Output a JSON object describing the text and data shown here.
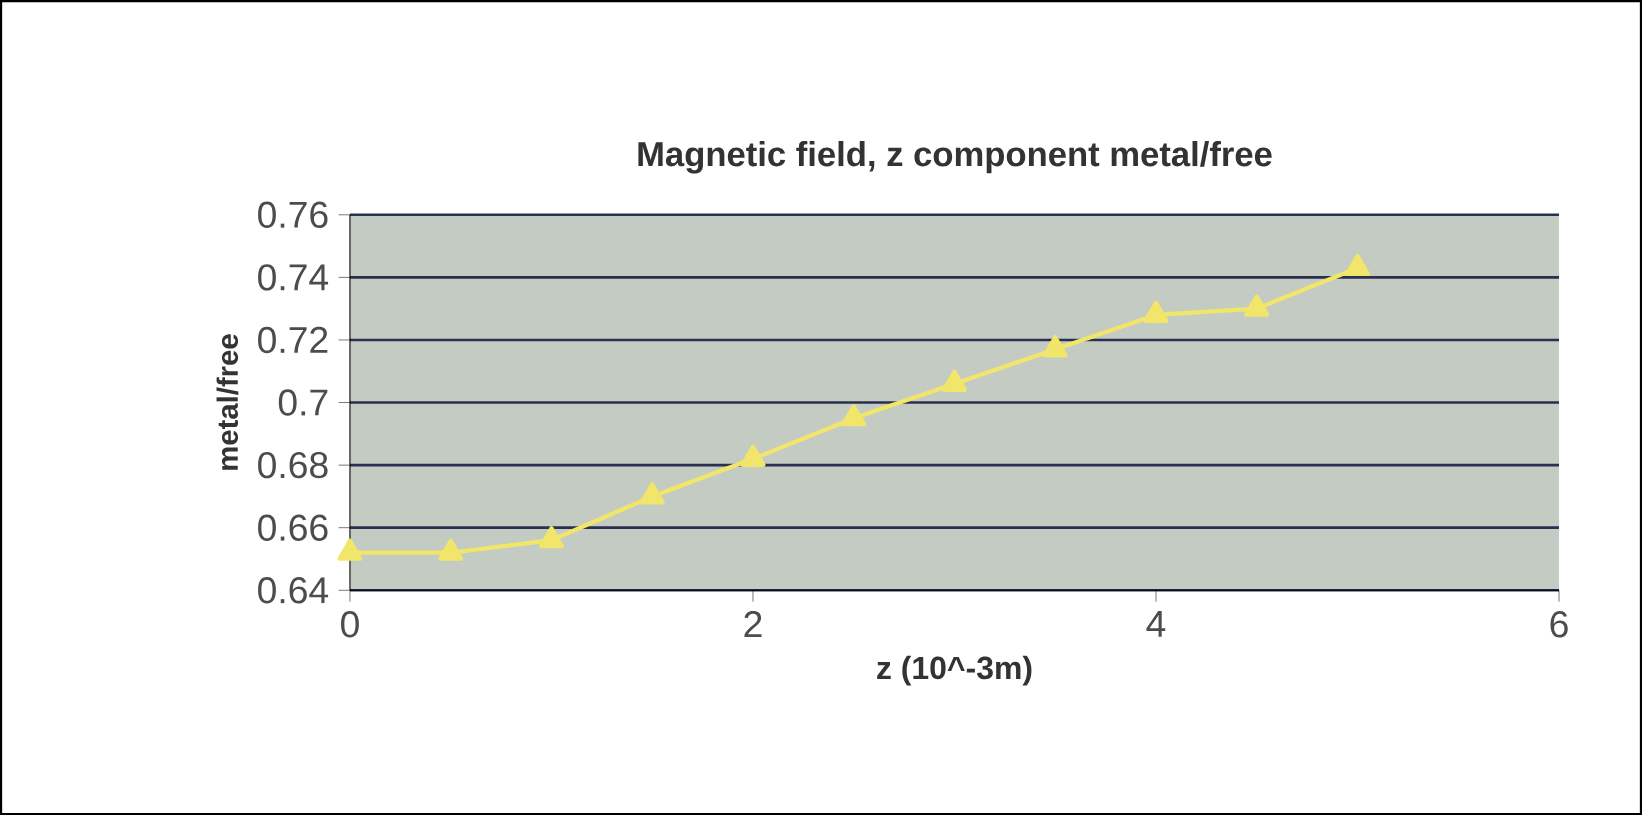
{
  "chart_data": {
    "type": "line",
    "title": "Magnetic field, z component metal/free",
    "xlabel": "z (10^-3m)",
    "ylabel": "metal/free",
    "x": [
      0,
      0.5,
      1,
      1.5,
      2,
      2.5,
      3,
      3.5,
      4,
      4.5,
      5
    ],
    "series": [
      {
        "color": "#f2e66a",
        "values": [
          0.652,
          0.652,
          0.656,
          0.67,
          0.682,
          0.695,
          0.706,
          0.717,
          0.728,
          0.73,
          0.743
        ]
      }
    ],
    "xlim": [
      0,
      6
    ],
    "xticks": [
      0,
      2,
      4,
      6
    ],
    "ylim": [
      0.64,
      0.76
    ],
    "yticks": [
      0.64,
      0.66,
      0.68,
      0.7,
      0.72,
      0.74,
      0.76
    ],
    "grid": "y",
    "marker": "triangle",
    "line_style": "solid"
  }
}
